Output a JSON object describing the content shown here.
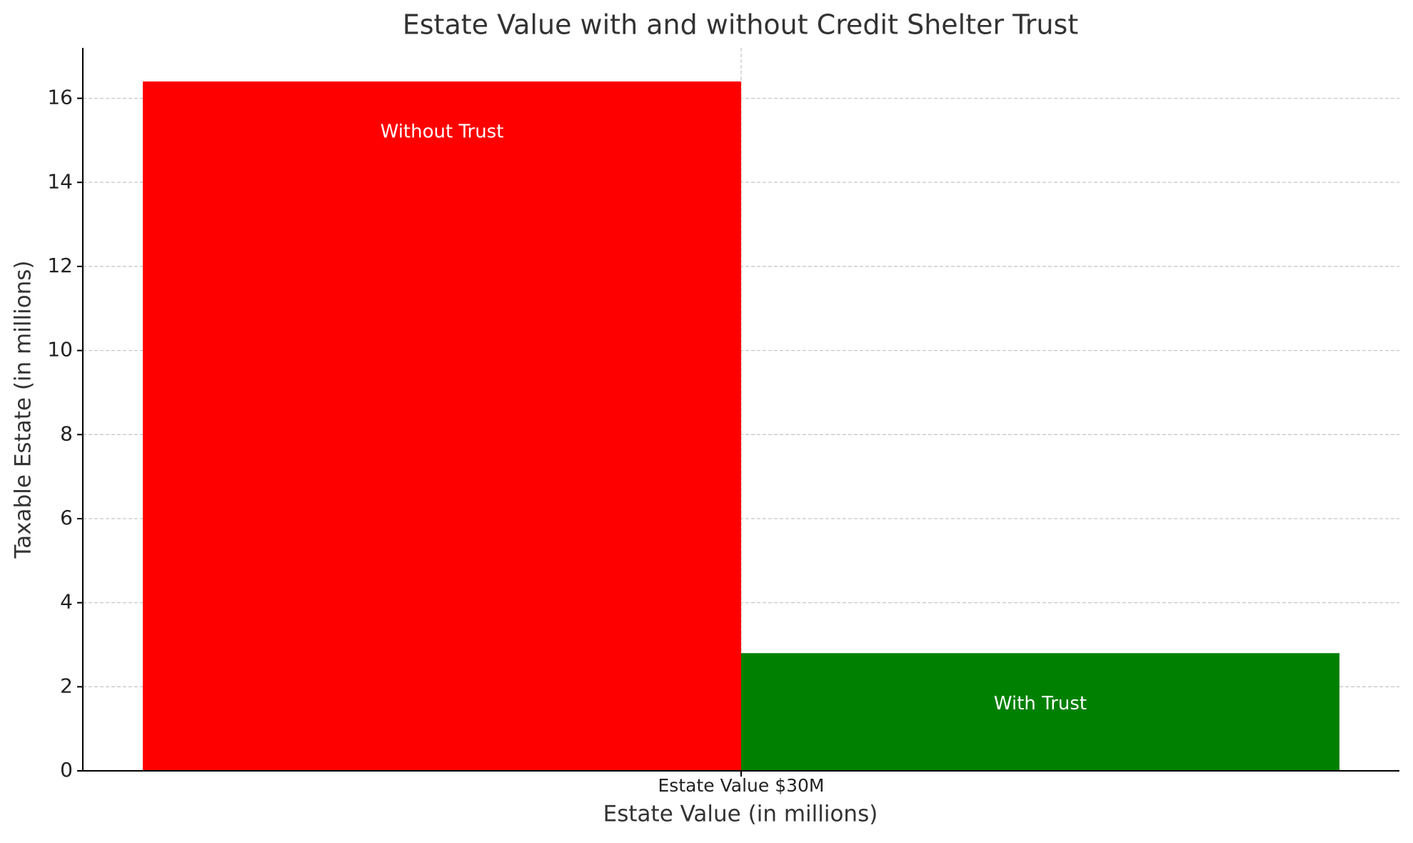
{
  "chart_data": {
    "type": "bar",
    "title": "Estate Value with and without Credit Shelter Trust",
    "x_label": "Estate Value (in millions)",
    "y_label": "Taxable Estate (in millions)",
    "categories": [
      "Estate Value $30M"
    ],
    "series": [
      {
        "name": "Without Trust",
        "color": "#ff0000",
        "values": [
          16.4
        ]
      },
      {
        "name": "With Trust",
        "color": "#008000",
        "values": [
          2.8
        ]
      }
    ],
    "ylim": [
      0,
      17.2
    ],
    "yticks": [
      0,
      2,
      4,
      6,
      8,
      10,
      12,
      14,
      16
    ],
    "grid": true
  }
}
